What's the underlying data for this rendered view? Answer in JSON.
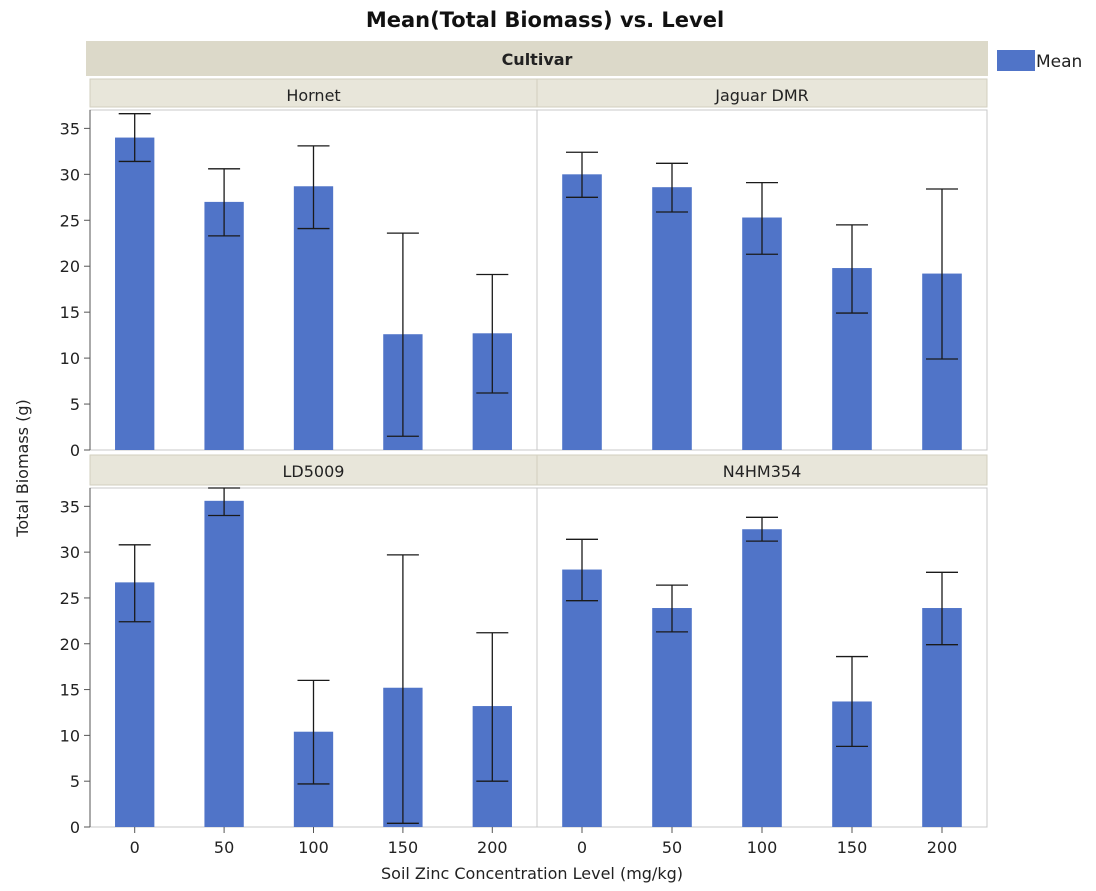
{
  "chart_data": {
    "type": "bar",
    "title": "Mean(Total Biomass) vs. Level",
    "group_header": "Cultivar",
    "xlabel": "Soil Zinc Concentration Level (mg/kg)",
    "ylabel": "Total Biomass (g)",
    "ylim": [
      0,
      37
    ],
    "yticks": [
      0,
      5,
      10,
      15,
      20,
      25,
      30,
      35
    ],
    "categories": [
      "0",
      "50",
      "100",
      "150",
      "200"
    ],
    "legend": {
      "label": "Mean",
      "position": "top-right",
      "color": "#5074C8"
    },
    "bar_color": "#5074C8",
    "grid": false,
    "panels": [
      {
        "name": "Hornet",
        "values": [
          34.0,
          27.0,
          28.7,
          12.6,
          12.7
        ],
        "lower": [
          31.4,
          23.3,
          24.1,
          1.5,
          6.2
        ],
        "upper": [
          36.6,
          30.6,
          33.1,
          23.6,
          19.1
        ]
      },
      {
        "name": "Jaguar DMR",
        "values": [
          30.0,
          28.6,
          25.3,
          19.8,
          19.2
        ],
        "lower": [
          27.5,
          25.9,
          21.3,
          14.9,
          9.9
        ],
        "upper": [
          32.4,
          31.2,
          29.1,
          24.5,
          28.4
        ]
      },
      {
        "name": "LD5009",
        "values": [
          26.7,
          35.6,
          10.4,
          15.2,
          13.2
        ],
        "lower": [
          22.4,
          34.0,
          4.7,
          0.4,
          5.0
        ],
        "upper": [
          30.8,
          37.0,
          16.0,
          29.7,
          21.2
        ]
      },
      {
        "name": "N4HM354",
        "values": [
          28.1,
          23.9,
          32.5,
          13.7,
          23.9
        ],
        "lower": [
          24.7,
          21.3,
          31.2,
          8.8,
          19.9
        ],
        "upper": [
          31.4,
          26.4,
          33.8,
          18.6,
          27.8
        ]
      }
    ]
  }
}
